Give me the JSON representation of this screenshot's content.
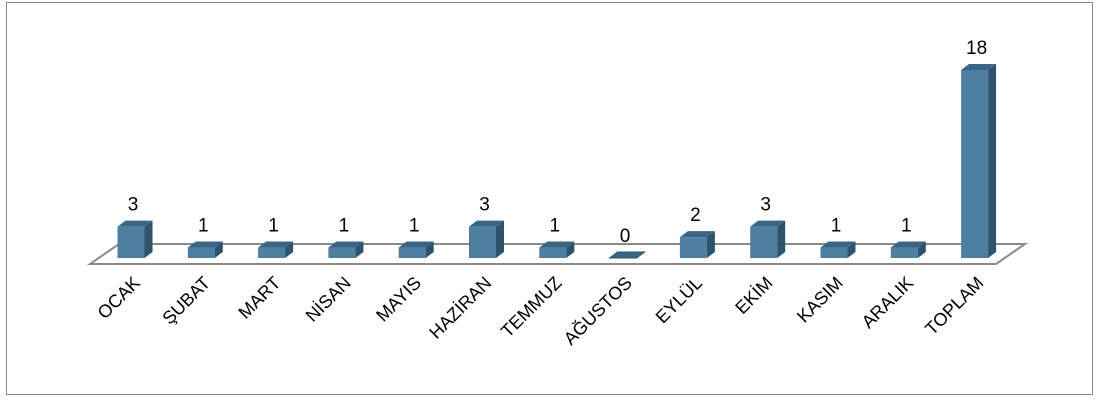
{
  "chart_data": {
    "type": "bar",
    "categories": [
      "OCAK",
      "ŞUBAT",
      "MART",
      "NİSAN",
      "MAYIS",
      "HAZİRAN",
      "TEMMUZ",
      "AĞUSTOS",
      "EYLÜL",
      "EKİM",
      "KASIM",
      "ARALIK",
      "TOPLAM"
    ],
    "values": [
      3,
      1,
      1,
      1,
      1,
      3,
      1,
      0,
      2,
      3,
      1,
      1,
      18
    ],
    "title": "",
    "xlabel": "",
    "ylabel": "",
    "ylim": [
      0,
      18
    ],
    "grid": false,
    "legend": "none",
    "style": "3d-column"
  },
  "colors": {
    "bar_front": "#4e7fa0",
    "bar_side": "#2d536d",
    "bar_top": "#3b6584",
    "floor_fill": "#ffffff",
    "floor_stroke": "#8a8a8a",
    "frame_border": "#8a8a8a"
  }
}
